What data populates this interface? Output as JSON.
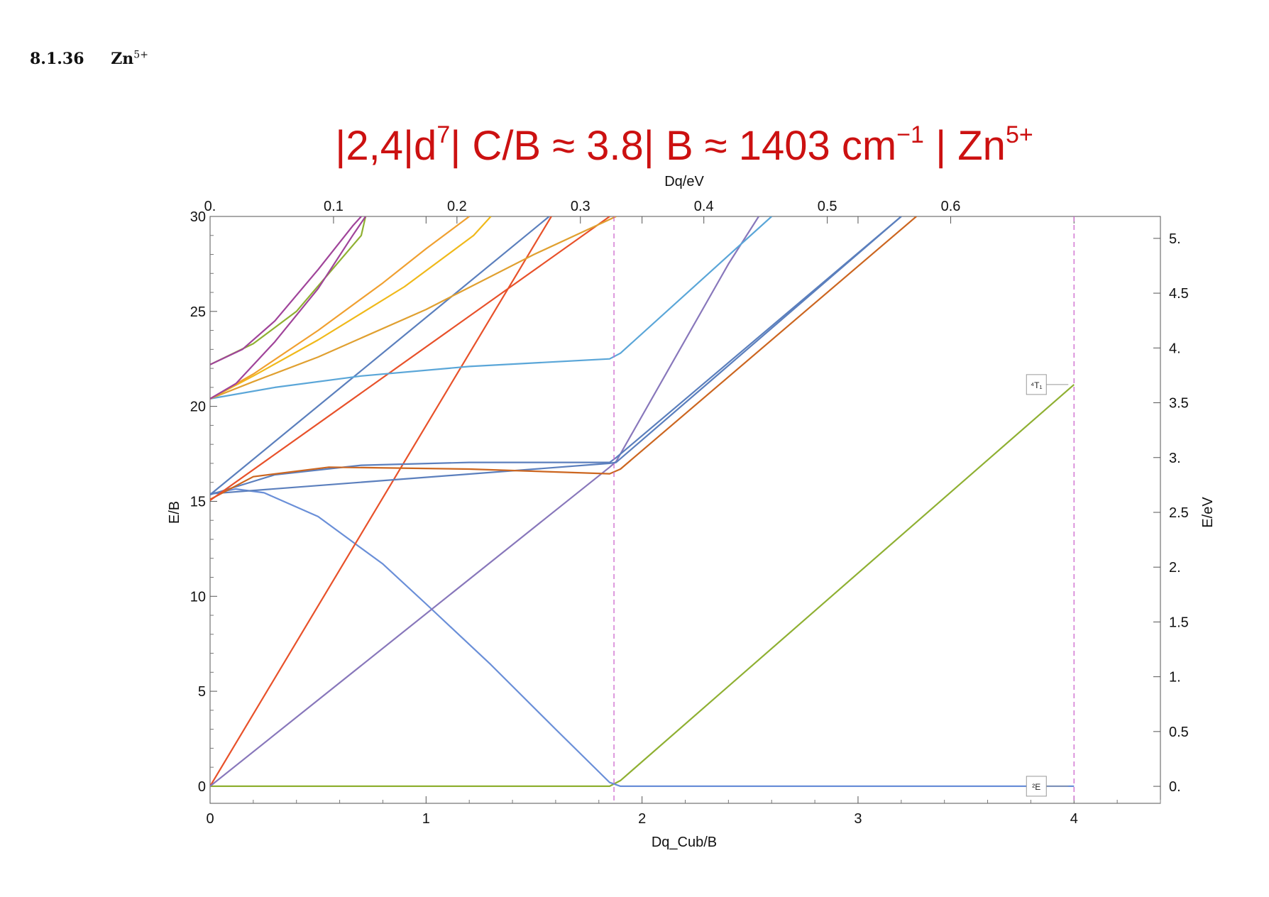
{
  "section": {
    "number": "8.1.36",
    "ion_base": "Zn",
    "ion_charge": "5+"
  },
  "chart_data": {
    "type": "line",
    "title": {
      "part1": "|2,4|d",
      "sup1": "7",
      "part2": "| C/B ≈ 3.8| B ≈ 1403 cm",
      "sup2": "−1",
      "part3": " | Zn",
      "sup3": "5+"
    },
    "xlabel": "Dq_Cub/B",
    "ylabel": "E/B",
    "top_xlabel": "Dq/eV",
    "right_ylabel": "E/eV",
    "xlim": [
      0,
      4.4
    ],
    "ylim": [
      -0.9,
      30
    ],
    "right_ylim": [
      -0.155,
      5.2
    ],
    "x_ticks": [
      "0",
      "1",
      "2",
      "3",
      "4"
    ],
    "y_ticks": [
      "0",
      "5",
      "10",
      "15",
      "20",
      "25",
      "30"
    ],
    "top_ticks": [
      "0.",
      "0.1",
      "0.2",
      "0.3",
      "0.4",
      "0.5",
      "0.6"
    ],
    "right_ticks": [
      "0.",
      "0.5",
      "1.",
      "1.5",
      "2.",
      "2.5",
      "3.",
      "3.5",
      "4.",
      "4.5",
      "5."
    ],
    "vlines": [
      1.87,
      4.0
    ],
    "vline_color": "#cc66cc",
    "term_labels": [
      {
        "text": "⁴T₁",
        "x": 4.0,
        "y": 21.15
      },
      {
        "text": "²E",
        "x": 4.0,
        "y": 0.0
      }
    ],
    "series": [
      {
        "color": "#8fb032",
        "points": [
          [
            0,
            0
          ],
          [
            1.85,
            0
          ],
          [
            1.9,
            0.3
          ],
          [
            4.0,
            21.15
          ]
        ]
      },
      {
        "color": "#6a8fd8",
        "points": [
          [
            0,
            15.4
          ],
          [
            0.12,
            15.65
          ],
          [
            0.25,
            15.45
          ],
          [
            0.5,
            14.2
          ],
          [
            0.8,
            11.7
          ],
          [
            1.0,
            9.6
          ],
          [
            1.3,
            6.4
          ],
          [
            1.6,
            3.0
          ],
          [
            1.85,
            0.2
          ],
          [
            1.9,
            0
          ],
          [
            4.0,
            0
          ]
        ]
      },
      {
        "color": "#e8512a",
        "points": [
          [
            0,
            0
          ],
          [
            1.58,
            30
          ]
        ]
      },
      {
        "color": "#8877bb",
        "points": [
          [
            0,
            0
          ],
          [
            1.85,
            16.8
          ],
          [
            1.88,
            17.1
          ],
          [
            2.4,
            27.5
          ],
          [
            2.54,
            30
          ]
        ]
      },
      {
        "color": "#5b7fbd",
        "points": [
          [
            0,
            15.4
          ],
          [
            1.85,
            17.0
          ],
          [
            1.88,
            17.05
          ],
          [
            3.2,
            30
          ]
        ]
      },
      {
        "color": "#5b7fbd",
        "points": [
          [
            0,
            15.35
          ],
          [
            0.3,
            16.4
          ],
          [
            0.7,
            16.9
          ],
          [
            1.2,
            17.05
          ],
          [
            1.85,
            17.05
          ],
          [
            1.88,
            17.3
          ],
          [
            3.2,
            30
          ]
        ]
      },
      {
        "color": "#cc6620",
        "points": [
          [
            0,
            15.1
          ],
          [
            0.2,
            16.3
          ],
          [
            0.55,
            16.8
          ],
          [
            1.2,
            16.7
          ],
          [
            1.85,
            16.45
          ],
          [
            1.9,
            16.7
          ],
          [
            3.27,
            30
          ]
        ]
      },
      {
        "color": "#e8512a",
        "points": [
          [
            0,
            15.05
          ],
          [
            1.85,
            30
          ]
        ]
      },
      {
        "color": "#5b7fbd",
        "points": [
          [
            0,
            15.35
          ],
          [
            1.57,
            30
          ]
        ]
      },
      {
        "color": "#5aa6d8",
        "points": [
          [
            0,
            20.4
          ],
          [
            0.3,
            21.0
          ],
          [
            0.7,
            21.6
          ],
          [
            1.2,
            22.1
          ],
          [
            1.85,
            22.5
          ],
          [
            1.9,
            22.8
          ],
          [
            2.6,
            30
          ]
        ]
      },
      {
        "color": "#e0a030",
        "points": [
          [
            0,
            20.4
          ],
          [
            0.2,
            21.3
          ],
          [
            0.5,
            22.6
          ],
          [
            1.0,
            25.1
          ],
          [
            1.5,
            28.0
          ],
          [
            1.88,
            30
          ]
        ]
      },
      {
        "color": "#f0b91a",
        "points": [
          [
            0,
            20.4
          ],
          [
            0.2,
            21.6
          ],
          [
            0.5,
            23.5
          ],
          [
            0.9,
            26.3
          ],
          [
            1.22,
            29.0
          ],
          [
            1.3,
            30
          ]
        ]
      },
      {
        "color": "#f0a030",
        "points": [
          [
            0,
            20.4
          ],
          [
            0.2,
            21.7
          ],
          [
            0.5,
            24.0
          ],
          [
            0.8,
            26.5
          ],
          [
            1.0,
            28.3
          ],
          [
            1.2,
            30
          ]
        ]
      },
      {
        "color": "#8fb032",
        "points": [
          [
            0,
            22.2
          ],
          [
            0.2,
            23.3
          ],
          [
            0.4,
            25.0
          ],
          [
            0.7,
            29.0
          ],
          [
            0.72,
            30
          ]
        ]
      },
      {
        "color": "#a0449a",
        "points": [
          [
            0,
            22.2
          ],
          [
            0.15,
            23.0
          ],
          [
            0.3,
            24.5
          ],
          [
            0.5,
            27.2
          ],
          [
            0.66,
            29.5
          ],
          [
            0.7,
            30
          ]
        ]
      },
      {
        "color": "#a0449a",
        "points": [
          [
            0,
            20.4
          ],
          [
            0.12,
            21.2
          ],
          [
            0.3,
            23.4
          ],
          [
            0.5,
            26.2
          ],
          [
            0.66,
            29.0
          ],
          [
            0.72,
            30
          ]
        ]
      }
    ]
  }
}
